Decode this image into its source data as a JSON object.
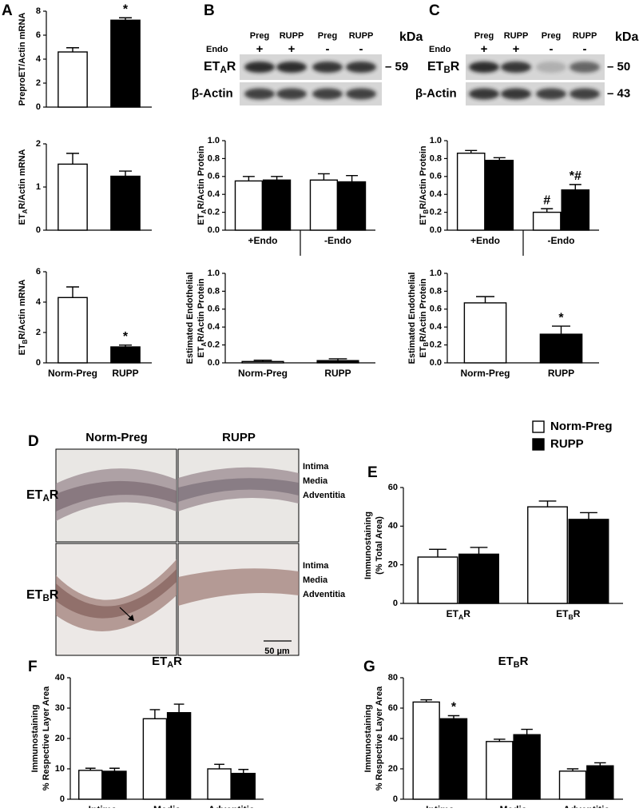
{
  "chart_data": [
    {
      "type": "bar",
      "panel": "A",
      "ylabel": [
        "PreproET/Actin mRNA"
      ],
      "ylim": [
        0,
        8
      ],
      "yticks": [
        0,
        2,
        4,
        6,
        8
      ],
      "values": [
        4.6,
        7.25
      ],
      "errors": [
        0.35,
        0.2
      ],
      "colors": [
        "#ffffff",
        "#000000"
      ],
      "markers": [
        null,
        "*"
      ]
    },
    {
      "type": "bar",
      "ylabel": [
        [
          "ET",
          {
            "sub": "A"
          },
          "R/Actin mRNA"
        ]
      ],
      "ylim": [
        0,
        2
      ],
      "yticks": [
        0,
        1,
        2
      ],
      "values": [
        1.53,
        1.25
      ],
      "errors": [
        0.25,
        0.12
      ],
      "colors": [
        "#ffffff",
        "#000000"
      ]
    },
    {
      "type": "bar",
      "ylabel": [
        [
          "ET",
          {
            "sub": "B"
          },
          "R/Actin mRNA"
        ]
      ],
      "ylim": [
        0,
        6
      ],
      "yticks": [
        0,
        2,
        4,
        6
      ],
      "categories": [
        "Norm-Preg",
        "RUPP"
      ],
      "values": [
        4.3,
        1.05
      ],
      "errors": [
        0.7,
        0.12
      ],
      "colors": [
        "#ffffff",
        "#000000"
      ],
      "markers": [
        null,
        "*"
      ]
    },
    {
      "type": "bar",
      "ylabel": [
        [
          "ET",
          {
            "sub": "A"
          },
          "R/Actin Protein"
        ]
      ],
      "ylim": [
        0,
        1
      ],
      "yticks": [
        {
          "value": 0,
          "label": "0.0"
        },
        0.2,
        0.4,
        0.6,
        0.8,
        {
          "value": 1,
          "label": "1.0"
        }
      ],
      "categories": [
        "+Endo",
        "-Endo"
      ],
      "divider": true,
      "series": [
        {
          "color": "#ffffff",
          "values": [
            0.55,
            0.56
          ],
          "errors": [
            0.05,
            0.07
          ]
        },
        {
          "color": "#000000",
          "values": [
            0.56,
            0.54
          ],
          "errors": [
            0.04,
            0.07
          ]
        }
      ]
    },
    {
      "type": "bar",
      "ylabel": [
        "Estimated Endothelial",
        [
          "ET",
          {
            "sub": "A"
          },
          "R/Actin Protein"
        ]
      ],
      "ylim": [
        0,
        1
      ],
      "yticks": [
        {
          "value": 0,
          "label": "0.0"
        },
        0.2,
        0.4,
        0.6,
        0.8,
        {
          "value": 1,
          "label": "1.0"
        }
      ],
      "categories": [
        "Norm-Preg",
        "RUPP"
      ],
      "values": [
        0.015,
        0.025
      ],
      "errors": [
        0.015,
        0.02
      ],
      "colors": [
        "#ffffff",
        "#000000"
      ]
    },
    {
      "type": "bar",
      "ylabel": [
        [
          "ET",
          {
            "sub": "B"
          },
          "R/Actin Protein"
        ]
      ],
      "ylim": [
        0,
        1
      ],
      "yticks": [
        {
          "value": 0,
          "label": "0.0"
        },
        0.2,
        0.4,
        0.6,
        0.8,
        {
          "value": 1,
          "label": "1.0"
        }
      ],
      "categories": [
        "+Endo",
        "-Endo"
      ],
      "divider": true,
      "series": [
        {
          "color": "#ffffff",
          "values": [
            0.86,
            0.2
          ],
          "errors": [
            0.03,
            0.04
          ],
          "markers": [
            null,
            "#"
          ]
        },
        {
          "color": "#000000",
          "values": [
            0.78,
            0.45
          ],
          "errors": [
            0.03,
            0.06
          ],
          "markers": [
            null,
            "*#"
          ]
        }
      ]
    },
    {
      "type": "bar",
      "ylabel": [
        "Estimated Endothelial",
        [
          "ET",
          {
            "sub": "B"
          },
          "R/Actin Protein"
        ]
      ],
      "ylim": [
        0,
        1
      ],
      "yticks": [
        {
          "value": 0,
          "label": "0.0"
        },
        0.2,
        0.4,
        0.6,
        0.8,
        {
          "value": 1,
          "label": "1.0"
        }
      ],
      "categories": [
        "Norm-Preg",
        "RUPP"
      ],
      "values": [
        0.67,
        0.32
      ],
      "errors": [
        0.07,
        0.09
      ],
      "colors": [
        "#ffffff",
        "#000000"
      ],
      "markers": [
        null,
        "*"
      ]
    },
    {
      "type": "bar",
      "panel": "E",
      "ylabel": [
        "Immunostaining",
        "(% Total Area)"
      ],
      "ylim": [
        0,
        60
      ],
      "yticks": [
        0,
        20,
        40,
        60
      ],
      "categories": [
        [
          "ET",
          {
            "sub": "A"
          },
          "R"
        ],
        [
          "ET",
          {
            "sub": "B"
          },
          "R"
        ]
      ],
      "legend": "top",
      "series": [
        {
          "name": "Norm-Preg",
          "color": "#ffffff",
          "values": [
            24,
            50
          ],
          "errors": [
            4,
            3
          ]
        },
        {
          "name": "RUPP",
          "color": "#000000",
          "values": [
            25.5,
            43.5
          ],
          "errors": [
            3.5,
            3.5
          ]
        }
      ]
    },
    {
      "type": "bar",
      "panel": "F",
      "title": [
        "ET",
        {
          "sub": "A"
        },
        "R"
      ],
      "ylabel": [
        "Immunostaining",
        "% Respective Layer Area"
      ],
      "ylim": [
        0,
        40
      ],
      "yticks": [
        0,
        10,
        20,
        30,
        40
      ],
      "categories": [
        "Intima",
        "Media",
        "Adventitia"
      ],
      "series": [
        {
          "color": "#ffffff",
          "values": [
            9.5,
            26.5,
            10
          ],
          "errors": [
            0.7,
            3,
            1.5
          ]
        },
        {
          "color": "#000000",
          "values": [
            9.2,
            28.5,
            8.5
          ],
          "errors": [
            1,
            2.8,
            1.3
          ]
        }
      ]
    },
    {
      "type": "bar",
      "panel": "G",
      "title": [
        "ET",
        {
          "sub": "B"
        },
        "R"
      ],
      "ylabel": [
        "Immunostaining",
        "% Respective Layer Area"
      ],
      "ylim": [
        0,
        80
      ],
      "yticks": [
        0,
        20,
        40,
        60,
        80
      ],
      "categories": [
        "Intima",
        "Media",
        "Adventitia"
      ],
      "series": [
        {
          "color": "#ffffff",
          "values": [
            64,
            38,
            18.5
          ],
          "errors": [
            1.5,
            1.5,
            1.5
          ]
        },
        {
          "color": "#000000",
          "values": [
            53,
            42.5,
            22
          ],
          "errors": [
            2,
            3.5,
            2
          ],
          "markers": [
            "*",
            null,
            null
          ]
        }
      ]
    }
  ],
  "blots": [
    {
      "panel": "B",
      "header": "Endo",
      "lanes": [
        "Preg",
        "RUPP",
        "Preg",
        "RUPP"
      ],
      "signs": [
        "+",
        "+",
        "-",
        "-"
      ],
      "unit": "kDa",
      "rows": [
        {
          "label": [
            "ET",
            {
              "sub": "A"
            },
            "R"
          ],
          "mass": "– 59"
        },
        {
          "label": "β-Actin"
        }
      ]
    },
    {
      "panel": "C",
      "header": "Endo",
      "lanes": [
        "Preg",
        "RUPP",
        "Preg",
        "RUPP"
      ],
      "signs": [
        "+",
        "+",
        "-",
        "-"
      ],
      "unit": "kDa",
      "rows": [
        {
          "label": [
            "ET",
            {
              "sub": "B"
            },
            "R"
          ],
          "mass": "– 50"
        },
        {
          "label": "β-Actin",
          "mass": "– 43"
        }
      ]
    }
  ],
  "micrograph": {
    "panel": "D",
    "columns": [
      "Norm-Preg",
      "RUPP"
    ],
    "rows": [
      {
        "label": [
          "ET",
          {
            "sub": "A"
          },
          "R"
        ],
        "layers": [
          "Intima",
          "Media",
          "Adventitia"
        ]
      },
      {
        "label": [
          "ET",
          {
            "sub": "B"
          },
          "R"
        ],
        "layers": [
          "Intima",
          "Media",
          "Adventitia"
        ]
      }
    ],
    "scale_bar": "50 µm"
  }
}
